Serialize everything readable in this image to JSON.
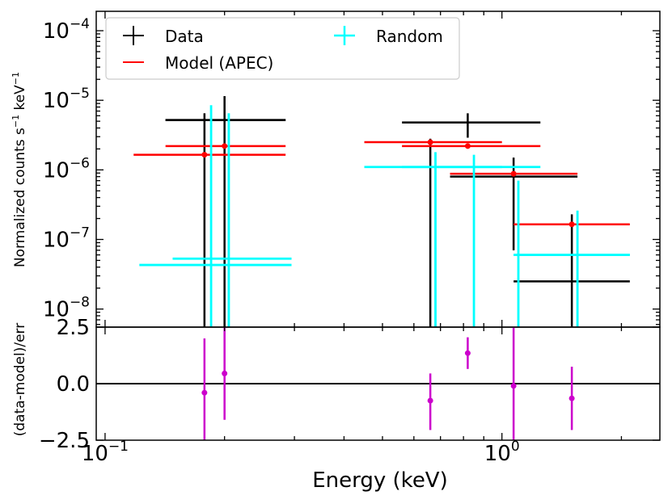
{
  "chart_data": [
    {
      "type": "scatter",
      "panel": "top",
      "xscale": "log",
      "yscale": "log",
      "xlim": [
        0.095,
        2.5
      ],
      "ylim": [
        5.5e-09,
        0.00019
      ],
      "ylabel": "Normalized counts s⁻¹ keV⁻¹",
      "ylabel_main": "Normalized counts s",
      "ylabel_exp1": "−1",
      "ylabel_mid": " keV",
      "ylabel_exp2": "−1",
      "ytick_labels": [
        {
          "base": "10",
          "exp": "−4",
          "value": 0.0001
        },
        {
          "base": "10",
          "exp": "−5",
          "value": 1e-05
        },
        {
          "base": "10",
          "exp": "−6",
          "value": 1e-06
        },
        {
          "base": "10",
          "exp": "−7",
          "value": 1e-07
        },
        {
          "base": "10",
          "exp": "−8",
          "value": 1e-08
        }
      ],
      "legend": {
        "placement": "top-left",
        "entries": [
          {
            "label": "Data",
            "color": "#000000"
          },
          {
            "label": "Model (APEC)",
            "color": "#ff0000"
          },
          {
            "label": "Random",
            "color": "#00ffff"
          }
        ]
      },
      "series": [
        {
          "name": "Data",
          "color": "#000000",
          "points": [
            {
              "x": 0.178,
              "y": 5.2e-06,
              "xlo": 0.142,
              "xhi": 0.285,
              "ylo": 5.5e-09,
              "yhi": 6.5e-06
            },
            {
              "x": 0.2,
              "y": 5.2e-06,
              "xlo": 0.142,
              "xhi": 0.285,
              "ylo": 5.5e-09,
              "yhi": 1.15e-05
            },
            {
              "x": 0.66,
              "y": 1.1e-06,
              "xlo": 0.45,
              "xhi": 1.0,
              "ylo": 5.5e-09,
              "yhi": 2.8e-06
            },
            {
              "x": 0.82,
              "y": 4.8e-06,
              "xlo": 0.56,
              "xhi": 1.25,
              "ylo": 2.9e-06,
              "yhi": 6.5e-06
            },
            {
              "x": 1.07,
              "y": 8e-07,
              "xlo": 0.74,
              "xhi": 1.55,
              "ylo": 7e-08,
              "yhi": 1.5e-06
            },
            {
              "x": 1.5,
              "y": 2.5e-08,
              "xlo": 1.07,
              "xhi": 2.1,
              "ylo": 5.5e-09,
              "yhi": 2.3e-07
            }
          ]
        },
        {
          "name": "Model (APEC)",
          "color": "#ff0000",
          "points": [
            {
              "x": 0.178,
              "y": 1.65e-06,
              "xlo": 0.118,
              "xhi": 0.285
            },
            {
              "x": 0.2,
              "y": 2.2e-06,
              "xlo": 0.142,
              "xhi": 0.285
            },
            {
              "x": 0.66,
              "y": 2.5e-06,
              "xlo": 0.45,
              "xhi": 1.0
            },
            {
              "x": 0.82,
              "y": 2.2e-06,
              "xlo": 0.56,
              "xhi": 1.25
            },
            {
              "x": 1.07,
              "y": 8.8e-07,
              "xlo": 0.74,
              "xhi": 1.55
            },
            {
              "x": 1.5,
              "y": 1.65e-07,
              "xlo": 1.07,
              "xhi": 2.1
            }
          ]
        },
        {
          "name": "Random",
          "color": "#00ffff",
          "points": [
            {
              "x": 0.185,
              "y": 4.3e-08,
              "xlo": 0.122,
              "xhi": 0.295,
              "ylo": 5.5e-09,
              "yhi": 8.5e-06
            },
            {
              "x": 0.205,
              "y": 5.3e-08,
              "xlo": 0.148,
              "xhi": 0.295,
              "ylo": 5.5e-09,
              "yhi": 6.5e-06
            },
            {
              "x": 0.68,
              "y": 1.1e-06,
              "xlo": 0.45,
              "xhi": 1.0,
              "ylo": 5.5e-09,
              "yhi": 1.8e-06
            },
            {
              "x": 0.85,
              "y": 1.1e-06,
              "xlo": 0.56,
              "xhi": 1.25,
              "ylo": 5.5e-09,
              "yhi": 1.65e-06
            },
            {
              "x": 1.1,
              "y": 6e-08,
              "xlo": 1.07,
              "xhi": 2.1,
              "ylo": 5.5e-09,
              "yhi": 7e-07
            },
            {
              "x": 1.55,
              "y": 6e-08,
              "xlo": 1.07,
              "xhi": 2.1,
              "ylo": 5.5e-09,
              "yhi": 2.6e-07
            }
          ]
        }
      ]
    },
    {
      "type": "scatter",
      "panel": "bottom",
      "xscale": "log",
      "xlim": [
        0.095,
        2.5
      ],
      "ylim": [
        -2.5,
        2.5
      ],
      "xlabel": "Energy (keV)",
      "ylabel": "(data-model)/err",
      "xtick_labels": [
        {
          "base": "10",
          "exp": "−1",
          "value": 0.1
        },
        {
          "base": "10",
          "exp": "0",
          "value": 1.0
        }
      ],
      "ytick_labels": [
        {
          "label": "2.5",
          "value": 2.5
        },
        {
          "label": "0.0",
          "value": 0.0
        },
        {
          "label": "−2.5",
          "value": -2.5
        }
      ],
      "series": [
        {
          "name": "",
          "color": "#cc00cc",
          "points": [
            {
              "x": 0.178,
              "y": -0.4,
              "ylo": -2.5,
              "yhi": 2.0
            },
            {
              "x": 0.2,
              "y": 0.45,
              "ylo": -1.6,
              "yhi": 2.5
            },
            {
              "x": 0.66,
              "y": -0.75,
              "ylo": -2.05,
              "yhi": 0.45
            },
            {
              "x": 0.82,
              "y": 1.35,
              "ylo": 0.65,
              "yhi": 2.05
            },
            {
              "x": 1.07,
              "y": -0.1,
              "ylo": -2.5,
              "yhi": 2.5
            },
            {
              "x": 1.5,
              "y": -0.65,
              "ylo": -2.05,
              "yhi": 0.75
            }
          ]
        }
      ]
    }
  ]
}
